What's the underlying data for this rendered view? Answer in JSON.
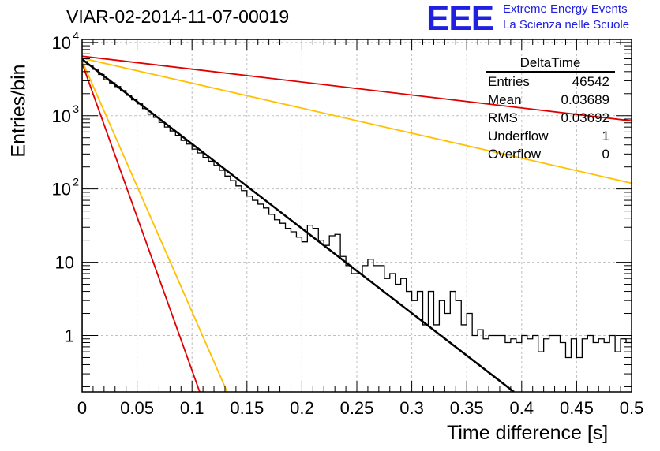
{
  "header": {
    "title": "VIAR-02-2014-11-07-00019",
    "logo_text": "EEE",
    "logo_line1": "Extreme Energy Events",
    "logo_line2": "La Scienza nelle Scuole"
  },
  "stats": {
    "title": "DeltaTime",
    "rows": [
      {
        "label": "Entries",
        "value": "46542"
      },
      {
        "label": "Mean",
        "value": "0.03689"
      },
      {
        "label": "RMS",
        "value": "0.03692"
      },
      {
        "label": "Underflow",
        "value": "1"
      },
      {
        "label": "Overflow",
        "value": "0"
      }
    ]
  },
  "colors": {
    "histogram": "#000000",
    "fit": "#000000",
    "red_bound": "#e00000",
    "yellow_bound": "#ffc000",
    "grid": "#bfbfbf"
  },
  "chart_data": {
    "type": "line",
    "xlabel": "Time difference [s]",
    "ylabel": "Entries/bin",
    "xlim": [
      0,
      0.5
    ],
    "ylim": [
      0.17,
      11000
    ],
    "log_y": true,
    "grid": true,
    "x_ticks": [
      "0",
      "0.05",
      "0.1",
      "0.15",
      "0.2",
      "0.25",
      "0.3",
      "0.35",
      "0.4",
      "0.45",
      "0.5"
    ],
    "y_ticks": [
      {
        "value": 1,
        "label": "1"
      },
      {
        "value": 10,
        "label": "10"
      },
      {
        "value": 100,
        "label": "10",
        "exp": "2"
      },
      {
        "value": 1000,
        "label": "10",
        "exp": "3"
      },
      {
        "value": 10000,
        "label": "10",
        "exp": "4"
      }
    ],
    "histogram": {
      "bin_width": 0.005,
      "counts": [
        5500,
        4900,
        4300,
        3650,
        3100,
        2800,
        2500,
        2200,
        1900,
        1650,
        1450,
        1250,
        1050,
        950,
        810,
        700,
        620,
        540,
        460,
        410,
        350,
        310,
        270,
        240,
        210,
        180,
        150,
        130,
        110,
        95,
        80,
        70,
        62,
        55,
        45,
        38,
        34,
        29,
        26,
        22,
        19,
        32,
        29,
        20,
        17,
        23,
        24,
        12,
        9,
        7,
        7,
        9,
        11,
        9,
        9,
        6,
        7,
        5,
        6,
        4,
        3,
        4,
        1.4,
        4,
        1.4,
        3,
        2,
        4,
        3,
        1.4,
        2,
        1,
        1.2,
        0.9,
        1,
        1,
        1,
        0.8,
        0.9,
        0.8,
        1,
        0.9,
        1,
        0.6,
        0.9,
        1,
        1,
        0.8,
        0.5,
        0.9,
        0.5,
        0.9,
        1,
        0.8,
        0.9,
        0.8,
        1,
        0.6,
        0.9,
        0.8,
        1,
        1,
        1,
        1.2,
        1,
        1,
        1.2,
        0.5,
        1,
        0.6,
        0.6
      ]
    },
    "series": [
      {
        "kind": "fit",
        "points": [
          [
            0,
            5900
          ],
          [
            0.393,
            0.17
          ]
        ]
      },
      {
        "kind": "red",
        "points": [
          [
            0,
            6500
          ],
          [
            0.5,
            850
          ]
        ]
      },
      {
        "kind": "red",
        "points": [
          [
            0,
            5200
          ],
          [
            0.107,
            0.17
          ]
        ]
      },
      {
        "kind": "yellow",
        "points": [
          [
            0,
            6100
          ],
          [
            0.5,
            120
          ]
        ]
      },
      {
        "kind": "yellow",
        "points": [
          [
            0,
            5600
          ],
          [
            0.132,
            0.17
          ]
        ]
      }
    ]
  }
}
